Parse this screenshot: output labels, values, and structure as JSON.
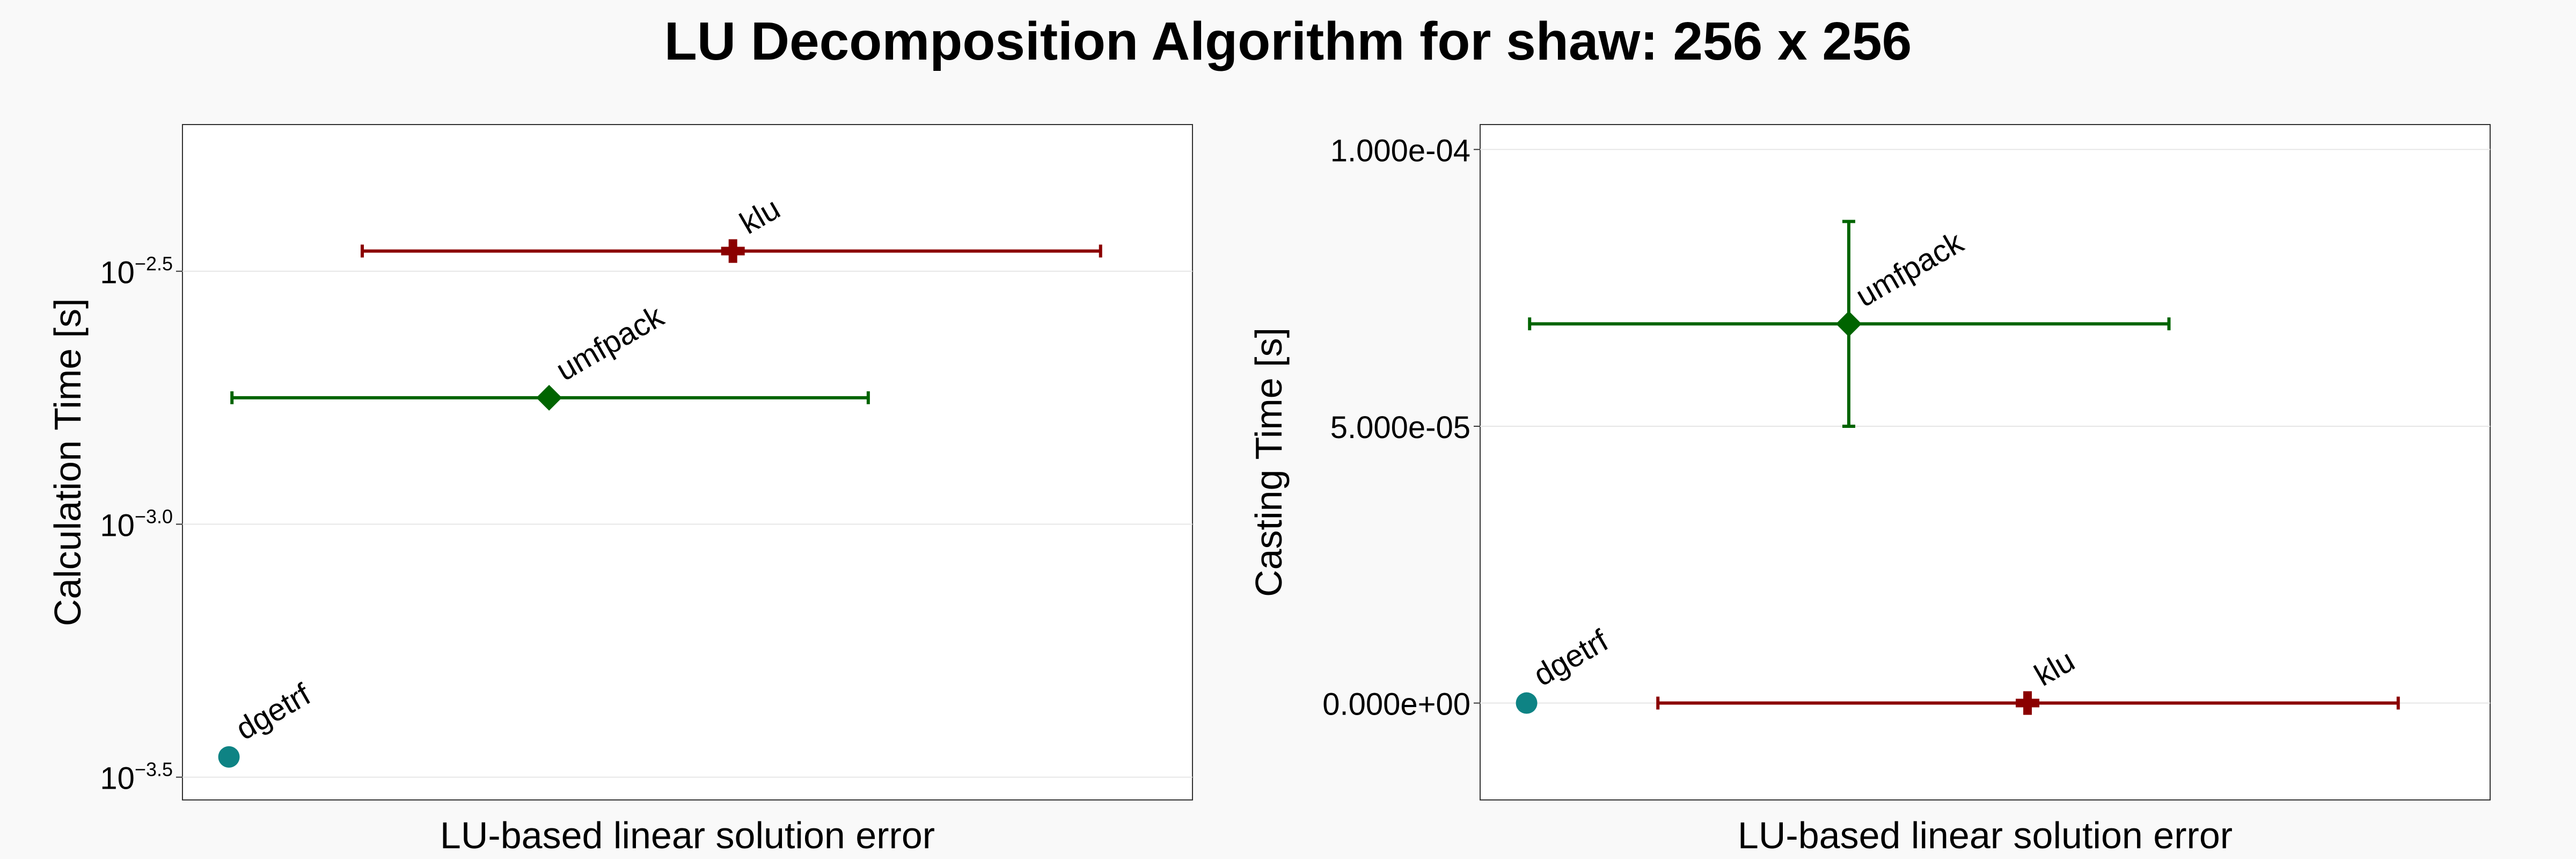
{
  "title": "LU Decomposition Algorithm for shaw: 256 x 256",
  "colors": {
    "background": "#f9f9f9",
    "plot_background": "#ffffff",
    "grid": "#e6e6e6",
    "dgetrf": "#0e8384",
    "umfpack": "#006400",
    "klu": "#8b0000"
  },
  "chart_data": [
    {
      "type": "scatter",
      "xlabel": "LU-based linear solution error",
      "ylabel": "Calculation Time [s]",
      "y_scale": "log10",
      "ylim": [
        -3.545,
        -2.21
      ],
      "xlim": [
        0,
        1
      ],
      "grid": true,
      "y_ticks": [
        {
          "value": -2.5,
          "label": "10",
          "exponent": "−2.5"
        },
        {
          "value": -3.0,
          "label": "10",
          "exponent": "−3.0"
        },
        {
          "value": -3.5,
          "label": "10",
          "exponent": "−3.5"
        }
      ],
      "points": [
        {
          "name": "dgetrf",
          "marker": "circle",
          "color": "#0e8384",
          "x": 0.046,
          "y": -3.46
        },
        {
          "name": "umfpack",
          "marker": "diamond",
          "color": "#006400",
          "x": 0.363,
          "y": -2.75,
          "xerr": [
            0.049,
            0.679
          ]
        },
        {
          "name": "klu",
          "marker": "cross",
          "color": "#8b0000",
          "x": 0.545,
          "y": -2.46,
          "xerr": [
            0.178,
            0.909
          ]
        }
      ]
    },
    {
      "type": "scatter",
      "xlabel": "LU-based linear solution error",
      "ylabel": "Casting Time [s]",
      "y_scale": "linear",
      "ylim": [
        -1.75e-05,
        0.0001045
      ],
      "xlim": [
        0,
        1
      ],
      "grid": true,
      "y_ticks": [
        {
          "value": 0.0001,
          "label": "1.000e-04"
        },
        {
          "value": 5e-05,
          "label": "5.000e-05"
        },
        {
          "value": 0,
          "label": "0.000e+00"
        }
      ],
      "points": [
        {
          "name": "dgetrf",
          "marker": "circle",
          "color": "#0e8384",
          "x": 0.046,
          "y": 0
        },
        {
          "name": "umfpack",
          "marker": "diamond",
          "color": "#006400",
          "x": 0.365,
          "y": 6.85e-05,
          "xerr": [
            0.049,
            0.682
          ],
          "yerr": [
            5e-05,
            8.7e-05
          ]
        },
        {
          "name": "klu",
          "marker": "cross",
          "color": "#8b0000",
          "x": 0.542,
          "y": 0,
          "xerr": [
            0.176,
            0.909
          ]
        }
      ]
    }
  ]
}
